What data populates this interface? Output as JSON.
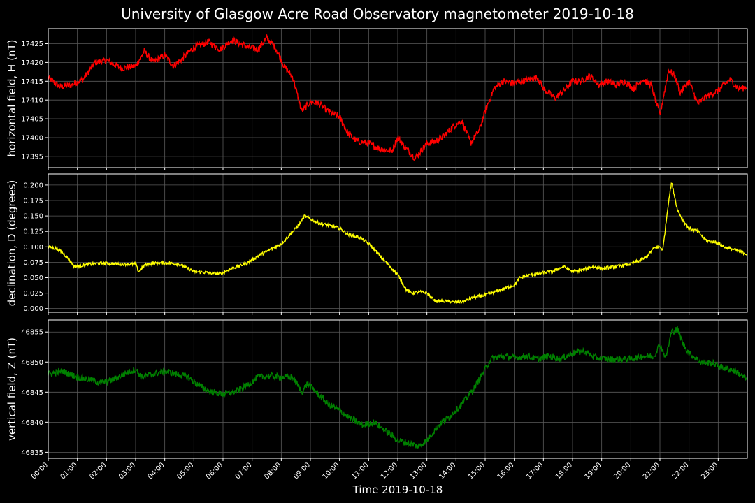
{
  "chart_data": {
    "title": "University of Glasgow Acre Road Observatory magnetometer 2019-10-18",
    "xlabel": "Time 2019-10-18",
    "x_ticks": [
      "00:00",
      "01:00",
      "02:00",
      "03:00",
      "04:00",
      "05:00",
      "06:00",
      "07:00",
      "08:00",
      "09:00",
      "10:00",
      "11:00",
      "12:00",
      "13:00",
      "14:00",
      "15:00",
      "16:00",
      "17:00",
      "18:00",
      "19:00",
      "20:00",
      "21:00",
      "22:00",
      "23:00"
    ],
    "xlim_hours": [
      0,
      24
    ],
    "grid": true,
    "panels": [
      {
        "type": "line",
        "ylabel": "horizontal field, H (nT)",
        "color": "#ff0000",
        "ylim": [
          17392,
          17429
        ],
        "yticks": [
          17395,
          17400,
          17405,
          17410,
          17415,
          17420,
          17425
        ],
        "noise": 0.9,
        "x": [
          0,
          0.4,
          0.8,
          1.2,
          1.6,
          2,
          2.5,
          3,
          3.3,
          3.6,
          4,
          4.3,
          4.6,
          5,
          5.5,
          5.9,
          6.3,
          6.6,
          6.9,
          7.2,
          7.5,
          7.8,
          8.1,
          8.4,
          8.7,
          9,
          9.3,
          9.6,
          10,
          10.3,
          10.6,
          11,
          11.4,
          11.8,
          12,
          12.3,
          12.6,
          13,
          13.3,
          13.6,
          13.9,
          14.2,
          14.5,
          14.8,
          15,
          15.3,
          15.6,
          15.9,
          16.2,
          16.5,
          16.8,
          17,
          17.4,
          17.7,
          18,
          18.3,
          18.6,
          18.9,
          19.2,
          19.5,
          19.8,
          20.1,
          20.4,
          20.7,
          21,
          21.1,
          21.3,
          21.5,
          21.7,
          22,
          22.3,
          22.6,
          23,
          23.4,
          23.7,
          24
        ],
        "y": [
          17416,
          17413.5,
          17414,
          17415.5,
          17420,
          17420.5,
          17418.5,
          17419,
          17423,
          17420,
          17422,
          17419,
          17421,
          17424,
          17425.5,
          17423.5,
          17426,
          17425,
          17424,
          17423.5,
          17426.5,
          17424,
          17419,
          17416,
          17407,
          17409.5,
          17409,
          17407,
          17405.5,
          17401,
          17399,
          17398.5,
          17397,
          17396.5,
          17400,
          17397,
          17394.5,
          17398.5,
          17399,
          17400.5,
          17403,
          17404.5,
          17398.5,
          17402,
          17407,
          17413,
          17415,
          17414.5,
          17415,
          17415.5,
          17416,
          17413,
          17410.5,
          17412.5,
          17415,
          17415,
          17416.5,
          17414,
          17415,
          17414,
          17415,
          17413,
          17415.5,
          17414,
          17406,
          17410,
          17418,
          17416.5,
          17412,
          17415,
          17409,
          17411,
          17412.5,
          17415.5,
          17413,
          17413.5
        ]
      },
      {
        "type": "line",
        "ylabel": "declination, D (degrees)",
        "color": "#ffff00",
        "ylim": [
          -0.006,
          0.218
        ],
        "yticks": [
          0.0,
          0.025,
          0.05,
          0.075,
          0.1,
          0.125,
          0.15,
          0.175,
          0.2
        ],
        "noise": 0.0025,
        "x": [
          0,
          0.3,
          0.5,
          0.7,
          0.9,
          1.2,
          1.6,
          2,
          2.5,
          3,
          3.1,
          3.3,
          3.6,
          4,
          4.5,
          5,
          5.5,
          5.9,
          6.3,
          6.8,
          7.2,
          7.6,
          8,
          8.3,
          8.6,
          8.8,
          9,
          9.3,
          9.6,
          10,
          10.3,
          10.7,
          11,
          11.3,
          11.6,
          12,
          12.3,
          12.5,
          12.8,
          13,
          13.3,
          13.6,
          14,
          14.3,
          14.6,
          15,
          15.5,
          16,
          16.2,
          16.6,
          17,
          17.3,
          17.7,
          18,
          18.3,
          18.7,
          19,
          19.5,
          20,
          20.5,
          20.8,
          21,
          21.1,
          21.3,
          21.4,
          21.6,
          21.8,
          22,
          22.3,
          22.6,
          22.9,
          23.2,
          23.6,
          24
        ],
        "y": [
          0.1,
          0.097,
          0.09,
          0.08,
          0.068,
          0.07,
          0.073,
          0.073,
          0.072,
          0.072,
          0.06,
          0.07,
          0.073,
          0.074,
          0.072,
          0.06,
          0.058,
          0.056,
          0.065,
          0.073,
          0.085,
          0.095,
          0.105,
          0.12,
          0.135,
          0.15,
          0.145,
          0.138,
          0.135,
          0.13,
          0.12,
          0.115,
          0.105,
          0.09,
          0.075,
          0.055,
          0.03,
          0.025,
          0.027,
          0.025,
          0.012,
          0.012,
          0.01,
          0.012,
          0.018,
          0.022,
          0.03,
          0.038,
          0.05,
          0.055,
          0.058,
          0.06,
          0.068,
          0.06,
          0.062,
          0.068,
          0.065,
          0.068,
          0.072,
          0.082,
          0.098,
          0.1,
          0.095,
          0.175,
          0.205,
          0.16,
          0.142,
          0.13,
          0.125,
          0.11,
          0.108,
          0.1,
          0.095,
          0.088
        ]
      },
      {
        "type": "line",
        "ylabel": "vertical field, Z (nT)",
        "color": "#008000",
        "ylim": [
          46834,
          46857
        ],
        "yticks": [
          46835,
          46840,
          46845,
          46850,
          46855
        ],
        "noise": 0.55,
        "x": [
          0,
          0.5,
          1,
          1.5,
          1.8,
          2.2,
          2.6,
          3,
          3.2,
          3.6,
          4,
          4.4,
          4.8,
          5.2,
          5.6,
          6,
          6.4,
          6.8,
          7.2,
          7.6,
          8,
          8.4,
          8.7,
          8.9,
          9.2,
          9.6,
          10,
          10.4,
          10.8,
          11.2,
          11.6,
          12,
          12.4,
          12.7,
          13,
          13.4,
          13.8,
          14.2,
          14.6,
          14.9,
          15.2,
          15.6,
          16,
          16.4,
          16.8,
          17.2,
          17.6,
          18,
          18.4,
          18.8,
          19.2,
          19.6,
          20,
          20.4,
          20.8,
          21,
          21.2,
          21.4,
          21.6,
          21.8,
          22,
          22.4,
          22.8,
          23.2,
          23.6,
          24
        ],
        "y": [
          46848,
          46848.5,
          46847.5,
          46847,
          46846.5,
          46847,
          46848,
          46848.8,
          46847.5,
          46848,
          46848.5,
          46848,
          46847.5,
          46846,
          46845,
          46844.7,
          46845,
          46846,
          46847.5,
          46847.7,
          46847.5,
          46847.5,
          46845,
          46846.5,
          46845,
          46843,
          46842,
          46840.5,
          46839.5,
          46840,
          46838.5,
          46837,
          46836.5,
          46836,
          46837,
          46839.5,
          46841,
          46843,
          46845.5,
          46848,
          46850.5,
          46851,
          46850.7,
          46851,
          46850.5,
          46851,
          46850.5,
          46851.5,
          46851.8,
          46850.7,
          46850.5,
          46850.5,
          46850.5,
          46851,
          46851,
          46853,
          46850.7,
          46855,
          46855.5,
          46853,
          46851.5,
          46850,
          46849.8,
          46849,
          46848.5,
          46847
        ]
      }
    ]
  }
}
